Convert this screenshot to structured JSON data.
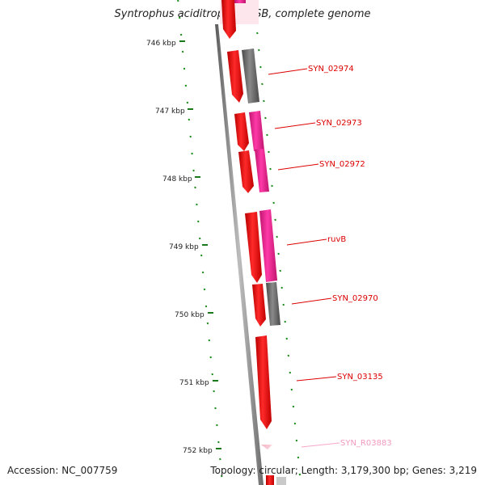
{
  "title": "Syntrophus aciditrophicus SB, complete genome",
  "accession": "Accession: NC_007759",
  "summary": "Topology: circular; Length: 3,179,300 bp; Genes: 3,219",
  "colors": {
    "backbone": "#7a7a7a",
    "tick": "#1a7a1a",
    "cds_forward": "#ee1111",
    "cds_function": "#ee2299",
    "cds_unknown": "#666666",
    "label_line": "#dd0000",
    "rna": "#f7a6c8"
  },
  "scale": {
    "unit": "kbp",
    "ticks": [
      "746 kbp",
      "747 kbp",
      "748 kbp",
      "749 kbp",
      "750 kbp",
      "751 kbp",
      "752 kbp"
    ]
  },
  "genes": [
    {
      "label": "SYN_02974",
      "type": "cds"
    },
    {
      "label": "SYN_02973",
      "type": "cds"
    },
    {
      "label": "SYN_02972",
      "type": "cds"
    },
    {
      "label": "ruvB",
      "type": "cds"
    },
    {
      "label": "SYN_02970",
      "type": "cds"
    },
    {
      "label": "SYN_03135",
      "type": "cds"
    },
    {
      "label": "SYN_R03883",
      "type": "rna"
    }
  ]
}
